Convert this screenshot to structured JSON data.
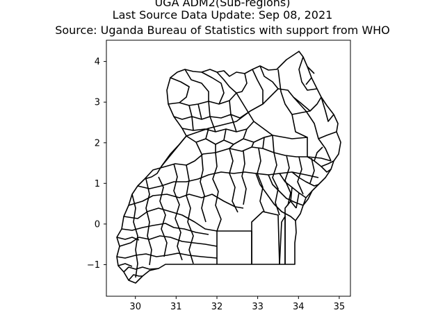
{
  "title_lines": [
    "UGA ADM2(Sub-regions)",
    "Last Source Data Update: Sep 08, 2021",
    "Source: Uganda Bureau of Statistics with support from WHO"
  ],
  "map": {
    "xlim": [
      29.35,
      35.3
    ],
    "ylim": [
      -1.78,
      4.52
    ],
    "x_ticks": [
      30,
      31,
      32,
      33,
      34,
      35
    ],
    "y_ticks": [
      4,
      3,
      2,
      1,
      0,
      -1
    ],
    "y_tick_labels": [
      "4",
      "3",
      "2",
      "1",
      "0",
      "−1"
    ],
    "outline_color": "#000000"
  }
}
